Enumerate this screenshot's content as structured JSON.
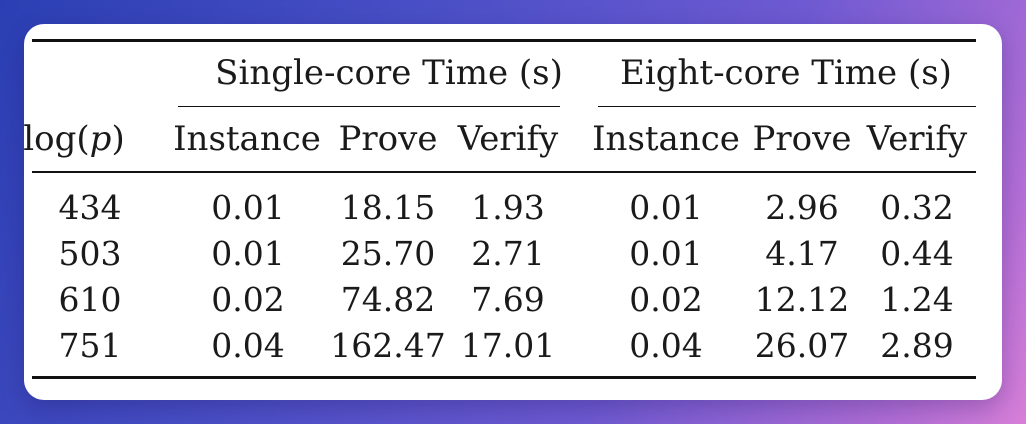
{
  "table": {
    "row_header": {
      "prefix": "log(",
      "var": "p",
      "suffix": ")"
    },
    "groups": [
      {
        "label": "Single-core Time (s)"
      },
      {
        "label": "Eight-core Time (s)"
      }
    ],
    "columns": [
      "Instance",
      "Prove",
      "Verify",
      "Instance",
      "Prove",
      "Verify"
    ],
    "rows": [
      {
        "logp": "434",
        "values": [
          "0.01",
          "18.15",
          "1.93",
          "0.01",
          "2.96",
          "0.32"
        ]
      },
      {
        "logp": "503",
        "values": [
          "0.01",
          "25.70",
          "2.71",
          "0.01",
          "4.17",
          "0.44"
        ]
      },
      {
        "logp": "610",
        "values": [
          "0.02",
          "74.82",
          "7.69",
          "0.02",
          "12.12",
          "1.24"
        ]
      },
      {
        "logp": "751",
        "values": [
          "0.04",
          "162.47",
          "17.01",
          "0.04",
          "26.07",
          "2.89"
        ]
      }
    ]
  }
}
